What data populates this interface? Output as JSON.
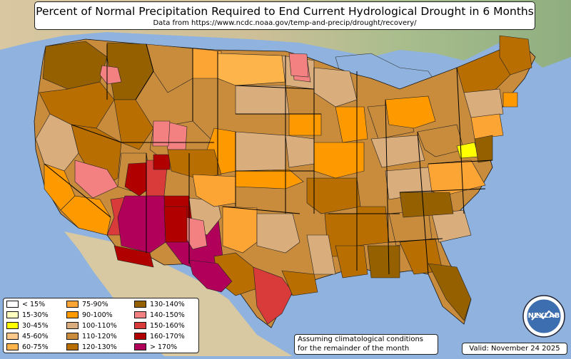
{
  "title": "Percent of Normal Precipitation Required to End Current Hydrological Drought in 6 Months",
  "subtitle": "Data from https://www.ncdc.noaa.gov/temp-and-precip/drought/recovery/",
  "legend": [
    {
      "label": "< 15%",
      "color": "#ffffff"
    },
    {
      "label": "15-30%",
      "color": "#ffffc0"
    },
    {
      "label": "30-45%",
      "color": "#ffff00"
    },
    {
      "label": "45-60%",
      "color": "#fcc98a"
    },
    {
      "label": "60-75%",
      "color": "#fdb44b"
    },
    {
      "label": "75-90%",
      "color": "#fca434"
    },
    {
      "label": "90-100%",
      "color": "#ff9900"
    },
    {
      "label": "100-110%",
      "color": "#d9ad7c"
    },
    {
      "label": "110-120%",
      "color": "#c98c3d"
    },
    {
      "label": "120-130%",
      "color": "#b86e00"
    },
    {
      "label": "130-140%",
      "color": "#946000"
    },
    {
      "label": "140-150%",
      "color": "#f48181"
    },
    {
      "label": "150-160%",
      "color": "#d93a3a"
    },
    {
      "label": "160-170%",
      "color": "#b00000"
    },
    {
      "label": "> 170%",
      "color": "#b0005a"
    }
  ],
  "note_lines": [
    "Assuming climatological conditions",
    "for the remainder of the month"
  ],
  "valid": "Valid: November 24 2025",
  "logo_text": "NEXLAB",
  "colors": {
    "ocean": "#8fb3de",
    "land_east": "#9fba8a",
    "land_west": "#d9cda6",
    "border": "#000000"
  }
}
